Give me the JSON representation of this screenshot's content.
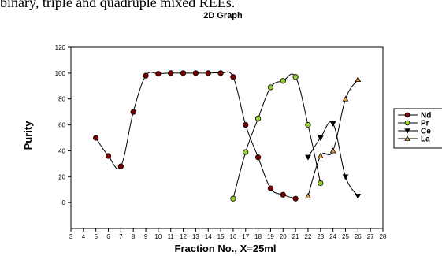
{
  "header_text": "binary, triple and quadruple mixed REEs.",
  "chart_data": {
    "type": "line",
    "title": "2D Graph",
    "xlabel": "Fraction No., X=25ml",
    "ylabel": "Purity",
    "xlim": [
      3,
      28
    ],
    "ylim": [
      -20,
      120
    ],
    "x_ticks": [
      3,
      4,
      5,
      6,
      7,
      8,
      9,
      10,
      11,
      12,
      13,
      14,
      15,
      16,
      17,
      18,
      19,
      20,
      21,
      22,
      23,
      24,
      25,
      26,
      27,
      28
    ],
    "y_ticks": [
      0,
      20,
      40,
      60,
      80,
      100,
      120
    ],
    "grid": false,
    "legend_position": "right",
    "series": [
      {
        "name": "Nd",
        "color": "#7a0000",
        "marker": "circle",
        "x": [
          5,
          6,
          7,
          8,
          9,
          10,
          11,
          12,
          13,
          14,
          15,
          16,
          17,
          18,
          19,
          20,
          21
        ],
        "y": [
          50,
          36,
          28,
          70,
          98,
          99.5,
          100,
          100,
          100,
          100,
          100,
          97,
          60,
          35,
          11,
          6,
          3
        ]
      },
      {
        "name": "Pr",
        "color": "#9acd32",
        "marker": "circle",
        "x": [
          16,
          17,
          18,
          19,
          20,
          21,
          22,
          23
        ],
        "y": [
          3,
          39,
          65,
          89,
          94,
          97,
          60,
          15
        ]
      },
      {
        "name": "Ce",
        "color": "#000000",
        "marker": "triangle-down",
        "x": [
          22,
          23,
          24,
          25,
          26
        ],
        "y": [
          35,
          50,
          61,
          20,
          5
        ]
      },
      {
        "name": "La",
        "color": "#e8a040",
        "marker": "triangle-up",
        "x": [
          22,
          23,
          24,
          25,
          26
        ],
        "y": [
          5,
          36,
          40,
          80,
          95
        ]
      }
    ]
  }
}
